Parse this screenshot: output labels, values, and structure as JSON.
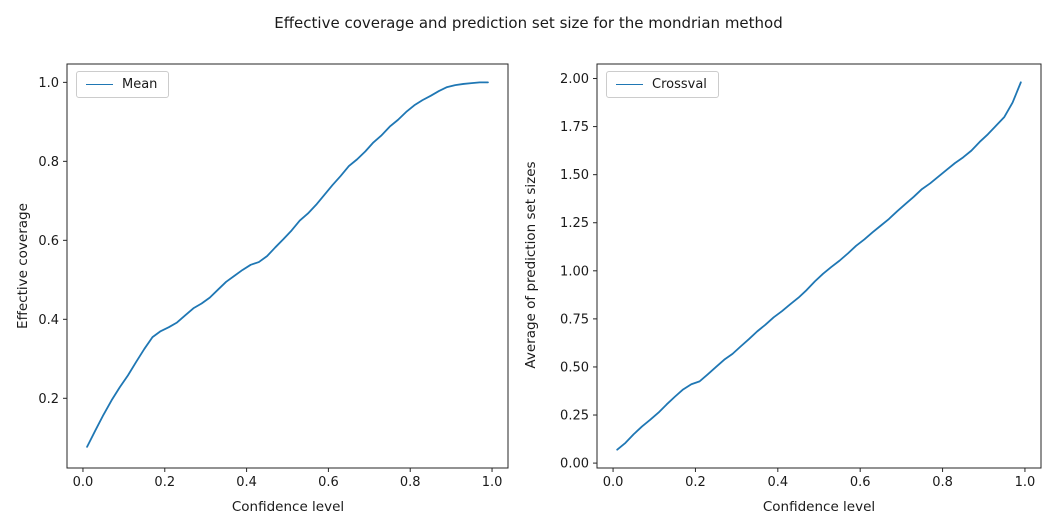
{
  "title": "Effective coverage and prediction set size for the mondrian method",
  "line_color": "#1f77b4",
  "chart_data": [
    {
      "type": "line",
      "legend": "Mean",
      "xlabel": "Confidence level",
      "ylabel": "Effective coverage",
      "xlim": [
        -0.039,
        1.039
      ],
      "ylim": [
        0.0235,
        1.0465
      ],
      "xticks": [
        0.0,
        0.2,
        0.4,
        0.6,
        0.8,
        1.0
      ],
      "xtick_labels": [
        "0.0",
        "0.2",
        "0.4",
        "0.6",
        "0.8",
        "1.0"
      ],
      "yticks": [
        0.2,
        0.4,
        0.6,
        0.8,
        1.0
      ],
      "ytick_labels": [
        "0.2",
        "0.4",
        "0.6",
        "0.8",
        "1.0"
      ],
      "x": [
        0.01,
        0.03,
        0.05,
        0.07,
        0.09,
        0.11,
        0.13,
        0.15,
        0.17,
        0.19,
        0.21,
        0.23,
        0.25,
        0.27,
        0.29,
        0.31,
        0.33,
        0.35,
        0.37,
        0.39,
        0.41,
        0.43,
        0.45,
        0.47,
        0.49,
        0.51,
        0.53,
        0.55,
        0.57,
        0.59,
        0.61,
        0.63,
        0.65,
        0.67,
        0.69,
        0.71,
        0.73,
        0.75,
        0.77,
        0.79,
        0.81,
        0.83,
        0.85,
        0.87,
        0.89,
        0.91,
        0.93,
        0.95,
        0.97,
        0.99
      ],
      "y": [
        0.077,
        0.118,
        0.158,
        0.195,
        0.228,
        0.258,
        0.292,
        0.325,
        0.355,
        0.37,
        0.38,
        0.392,
        0.41,
        0.428,
        0.44,
        0.455,
        0.475,
        0.495,
        0.51,
        0.525,
        0.538,
        0.545,
        0.56,
        0.582,
        0.603,
        0.625,
        0.65,
        0.668,
        0.69,
        0.715,
        0.74,
        0.763,
        0.788,
        0.805,
        0.825,
        0.848,
        0.866,
        0.888,
        0.905,
        0.925,
        0.942,
        0.955,
        0.966,
        0.978,
        0.988,
        0.993,
        0.996,
        0.998,
        1.0,
        1.0
      ]
    },
    {
      "type": "line",
      "legend": "Crossval",
      "xlabel": "Confidence level",
      "ylabel": "Average of prediction set sizes",
      "xlim": [
        -0.039,
        1.039
      ],
      "ylim": [
        -0.0255,
        2.0755
      ],
      "xticks": [
        0.0,
        0.2,
        0.4,
        0.6,
        0.8,
        1.0
      ],
      "xtick_labels": [
        "0.0",
        "0.2",
        "0.4",
        "0.6",
        "0.8",
        "1.0"
      ],
      "yticks": [
        0.0,
        0.25,
        0.5,
        0.75,
        1.0,
        1.25,
        1.5,
        1.75,
        2.0
      ],
      "ytick_labels": [
        "0.00",
        "0.25",
        "0.50",
        "0.75",
        "1.00",
        "1.25",
        "1.50",
        "1.75",
        "2.00"
      ],
      "x": [
        0.01,
        0.03,
        0.05,
        0.07,
        0.09,
        0.11,
        0.13,
        0.15,
        0.17,
        0.19,
        0.21,
        0.23,
        0.25,
        0.27,
        0.29,
        0.31,
        0.33,
        0.35,
        0.37,
        0.39,
        0.41,
        0.43,
        0.45,
        0.47,
        0.49,
        0.51,
        0.53,
        0.55,
        0.57,
        0.59,
        0.61,
        0.63,
        0.65,
        0.67,
        0.69,
        0.71,
        0.73,
        0.75,
        0.77,
        0.79,
        0.81,
        0.83,
        0.85,
        0.87,
        0.89,
        0.91,
        0.93,
        0.95,
        0.97,
        0.99
      ],
      "y": [
        0.07,
        0.105,
        0.15,
        0.19,
        0.225,
        0.262,
        0.305,
        0.345,
        0.383,
        0.41,
        0.425,
        0.462,
        0.5,
        0.538,
        0.568,
        0.607,
        0.645,
        0.685,
        0.72,
        0.758,
        0.79,
        0.826,
        0.86,
        0.9,
        0.945,
        0.985,
        1.02,
        1.053,
        1.09,
        1.13,
        1.163,
        1.2,
        1.235,
        1.27,
        1.31,
        1.348,
        1.385,
        1.425,
        1.455,
        1.49,
        1.525,
        1.56,
        1.59,
        1.625,
        1.67,
        1.71,
        1.755,
        1.8,
        1.875,
        1.98
      ]
    }
  ]
}
